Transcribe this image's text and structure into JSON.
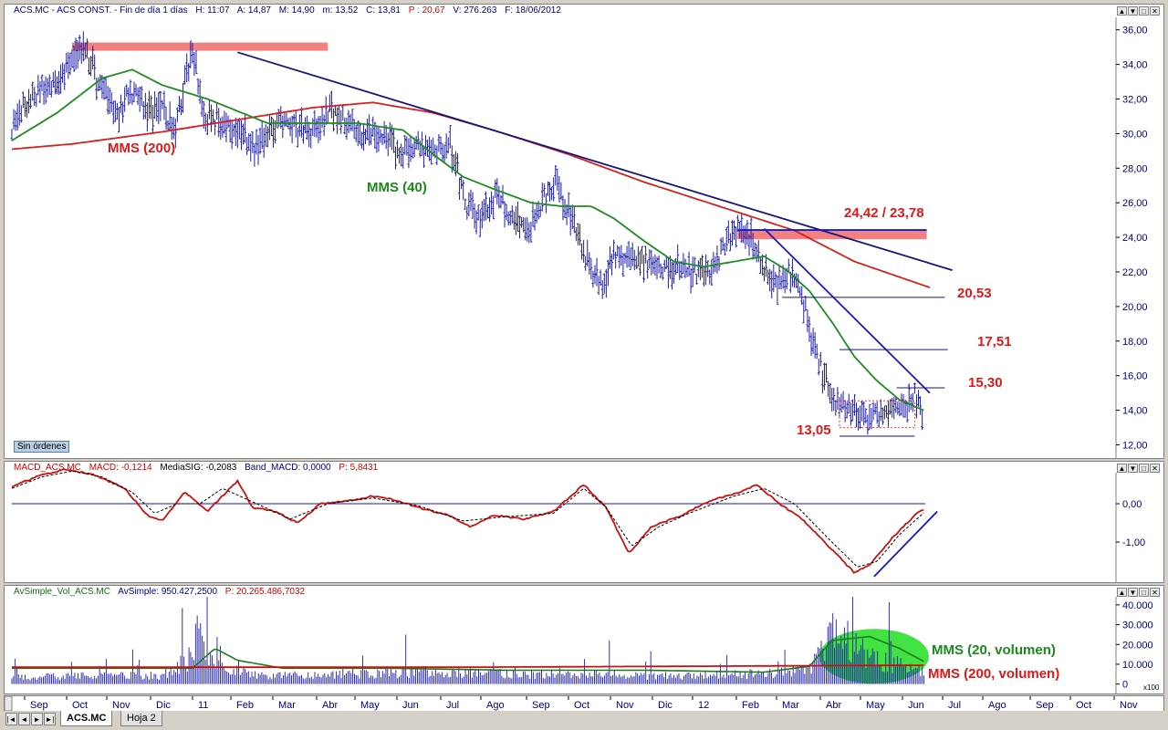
{
  "price_pane": {
    "title_parts": [
      "ACS.MC - ACS CONST. - Fin de día 1 días",
      "H: 11:07",
      "A: 14,87",
      "M: 14,90",
      "m: 13,52",
      "C: 13,81",
      "P : 20,67",
      "V: 276.263",
      "F: 18/06/2012"
    ],
    "no_orders_label": "Sin órdenes"
  },
  "macd_pane": {
    "title_parts": [
      "MACD_ACS.MC",
      "MACD: -0,1214",
      "MediaSIG: -0,2083",
      "Band_MACD: 0,0000",
      "P: 5,8431"
    ]
  },
  "vol_pane": {
    "title_parts": [
      "AvSimple_Vol_ACS.MC",
      "AvSimple: 950.427,2500",
      "P: 20.265.486,7032"
    ]
  },
  "window_buttons": [
    "▲",
    "▼",
    "□",
    "✕"
  ],
  "sheet_tabs": [
    "ACS.MC",
    "Hoja 2"
  ],
  "nav_buttons": [
    "|◄",
    "◄",
    "►",
    "►|"
  ],
  "colors": {
    "price_bars": "#1c1caa",
    "mms40": "#1e8c1e",
    "mms200": "#d42020",
    "trend": "#14147a",
    "resistance_band": "#f48080",
    "annotation_red": "#e01818",
    "annotation_green": "#1a8a1a",
    "volume_bubble": "#22dd22"
  },
  "chart_data": [
    {
      "type": "line",
      "title": "ACS.MC - ACS CONST.",
      "subtype": "ohlc-bars",
      "y_ticks": [
        "12,00",
        "14,00",
        "16,00",
        "18,00",
        "20,00",
        "22,00",
        "24,00",
        "26,00",
        "28,00",
        "30,00",
        "32,00",
        "34,00",
        "36,00"
      ],
      "ylim": [
        11.5,
        36.3
      ],
      "x_ticks": [
        "Sep",
        "Oct",
        "Nov",
        "Dic",
        "11",
        "Feb",
        "Mar",
        "Abr",
        "May",
        "Jun",
        "Jul",
        "Ago",
        "Sep",
        "Oct",
        "Nov",
        "Dic",
        "12",
        "Feb",
        "Mar",
        "Abr",
        "May",
        "Jun",
        "Jul",
        "Ago",
        "Sep",
        "Oct",
        "Nov"
      ],
      "price_path": [
        [
          0,
          30.3
        ],
        [
          10,
          31.8
        ],
        [
          25,
          32.8
        ],
        [
          35,
          33.6
        ],
        [
          48,
          34.8
        ],
        [
          55,
          33.5
        ],
        [
          60,
          32.5
        ],
        [
          70,
          31
        ],
        [
          78,
          32.5
        ],
        [
          90,
          31.3
        ],
        [
          100,
          31.6
        ],
        [
          108,
          30
        ],
        [
          115,
          33
        ],
        [
          120,
          34.7
        ],
        [
          128,
          31
        ],
        [
          138,
          30.8
        ],
        [
          150,
          30.2
        ],
        [
          162,
          29.2
        ],
        [
          172,
          30
        ],
        [
          180,
          30.8
        ],
        [
          190,
          30.5
        ],
        [
          200,
          30
        ],
        [
          212,
          31.6
        ],
        [
          222,
          30.6
        ],
        [
          235,
          29.8
        ],
        [
          250,
          29.7
        ],
        [
          258,
          28.5
        ],
        [
          270,
          29.5
        ],
        [
          282,
          28.8
        ],
        [
          292,
          29.2
        ],
        [
          302,
          25.8
        ],
        [
          312,
          25
        ],
        [
          322,
          26.4
        ],
        [
          332,
          25.2
        ],
        [
          342,
          24.4
        ],
        [
          352,
          26
        ],
        [
          362,
          27.2
        ],
        [
          375,
          24.4
        ],
        [
          385,
          22.2
        ],
        [
          392,
          21
        ],
        [
          400,
          22.8
        ],
        [
          410,
          23
        ],
        [
          420,
          22.6
        ],
        [
          432,
          22.1
        ],
        [
          445,
          22.4
        ],
        [
          455,
          21.9
        ],
        [
          465,
          22.2
        ],
        [
          475,
          23.8
        ],
        [
          482,
          24.4
        ],
        [
          492,
          23.8
        ],
        [
          500,
          22
        ],
        [
          510,
          21.2
        ],
        [
          518,
          22.2
        ],
        [
          525,
          20.6
        ],
        [
          535,
          17
        ],
        [
          545,
          14.7
        ],
        [
          555,
          13.9
        ],
        [
          565,
          13.5
        ],
        [
          575,
          13.8
        ],
        [
          585,
          14.1
        ],
        [
          595,
          14.2
        ],
        [
          600,
          14.87
        ],
        [
          606,
          13.81
        ]
      ],
      "series": [
        {
          "name": "MMS (200)",
          "values": [
            [
              0,
              29.1
            ],
            [
              40,
              29.4
            ],
            [
              100,
              30.1
            ],
            [
              150,
              30.8
            ],
            [
              200,
              31.5
            ],
            [
              240,
              31.8
            ],
            [
              280,
              31.2
            ],
            [
              320,
              30.2
            ],
            [
              370,
              28.8
            ],
            [
              420,
              27.2
            ],
            [
              470,
              25.8
            ],
            [
              520,
              24.4
            ],
            [
              560,
              22.6
            ],
            [
              610,
              21.1
            ]
          ]
        },
        {
          "name": "MMS (40)",
          "values": [
            [
              0,
              29.6
            ],
            [
              30,
              31.2
            ],
            [
              60,
              33.2
            ],
            [
              80,
              33.7
            ],
            [
              100,
              32.8
            ],
            [
              130,
              32
            ],
            [
              150,
              31.3
            ],
            [
              170,
              30.6
            ],
            [
              200,
              30.6
            ],
            [
              230,
              30.6
            ],
            [
              260,
              30.2
            ],
            [
              280,
              28.8
            ],
            [
              300,
              27.5
            ],
            [
              320,
              26.8
            ],
            [
              345,
              26
            ],
            [
              365,
              25.8
            ],
            [
              385,
              25.8
            ],
            [
              400,
              25.1
            ],
            [
              420,
              23.8
            ],
            [
              440,
              22.6
            ],
            [
              460,
              22.3
            ],
            [
              480,
              22.6
            ],
            [
              500,
              22.9
            ],
            [
              515,
              22.1
            ],
            [
              530,
              20.9
            ],
            [
              545,
              19.1
            ],
            [
              560,
              17.1
            ],
            [
              575,
              15.7
            ],
            [
              590,
              14.6
            ],
            [
              606,
              14
            ]
          ]
        }
      ],
      "annotations": {
        "mms200_label": "MMS (200)",
        "mms40_label": "MMS (40)",
        "resistance_label": "24,42 / 23,78",
        "level_20": "20,53",
        "level_17": "17,51",
        "level_15": "15,30",
        "support_label": "13,05"
      },
      "trendlines": [
        {
          "from": [
            150,
            34.7
          ],
          "to": [
            625,
            22.1
          ]
        },
        {
          "from": [
            500,
            24.5
          ],
          "to": [
            610,
            15
          ]
        }
      ],
      "levels": [
        {
          "value": 35.0,
          "x": [
            40,
            210
          ],
          "kind": "band"
        },
        {
          "value": 24.1,
          "x": [
            482,
            608
          ],
          "kind": "band"
        },
        {
          "value": 24.42,
          "x": [
            482,
            608
          ],
          "kind": "line"
        },
        {
          "value": 20.53,
          "x": [
            512,
            620
          ],
          "kind": "line"
        },
        {
          "value": 17.51,
          "x": [
            550,
            622
          ],
          "kind": "line"
        },
        {
          "value": 15.3,
          "x": [
            588,
            620
          ],
          "kind": "line"
        },
        {
          "value": 12.5,
          "x": [
            550,
            600
          ],
          "kind": "line"
        }
      ]
    },
    {
      "type": "line",
      "title": "MACD_ACS.MC",
      "y_ticks": [
        "0,00",
        "-1,00"
      ],
      "ylim": [
        -1.95,
        1.0
      ],
      "series": [
        {
          "name": "MACD",
          "values": [
            [
              0,
              0.45
            ],
            [
              20,
              0.75
            ],
            [
              35,
              0.9
            ],
            [
              55,
              0.75
            ],
            [
              75,
              0.4
            ],
            [
              90,
              -0.3
            ],
            [
              100,
              -0.45
            ],
            [
              115,
              0.3
            ],
            [
              130,
              -0.2
            ],
            [
              150,
              0.6
            ],
            [
              160,
              -0.1
            ],
            [
              175,
              -0.2
            ],
            [
              190,
              -0.5
            ],
            [
              205,
              0
            ],
            [
              220,
              0.05
            ],
            [
              240,
              0.2
            ],
            [
              255,
              0.1
            ],
            [
              270,
              -0.1
            ],
            [
              290,
              -0.3
            ],
            [
              305,
              -0.6
            ],
            [
              320,
              -0.3
            ],
            [
              340,
              -0.4
            ],
            [
              360,
              -0.2
            ],
            [
              380,
              0.5
            ],
            [
              395,
              -0.1
            ],
            [
              410,
              -1.3
            ],
            [
              425,
              -0.6
            ],
            [
              445,
              -0.3
            ],
            [
              465,
              0.1
            ],
            [
              480,
              0.25
            ],
            [
              495,
              0.5
            ],
            [
              510,
              0
            ],
            [
              525,
              -0.4
            ],
            [
              545,
              -1.2
            ],
            [
              560,
              -1.8
            ],
            [
              570,
              -1.6
            ],
            [
              585,
              -0.9
            ],
            [
              600,
              -0.3
            ],
            [
              607,
              -0.12
            ]
          ]
        },
        {
          "name": "MediaSIG",
          "values": [
            [
              0,
              0.4
            ],
            [
              20,
              0.7
            ],
            [
              40,
              0.85
            ],
            [
              60,
              0.7
            ],
            [
              80,
              0.3
            ],
            [
              95,
              -0.25
            ],
            [
              110,
              0
            ],
            [
              125,
              0
            ],
            [
              140,
              0.4
            ],
            [
              160,
              0.05
            ],
            [
              185,
              -0.4
            ],
            [
              210,
              0
            ],
            [
              240,
              0.15
            ],
            [
              270,
              -0.05
            ],
            [
              300,
              -0.45
            ],
            [
              325,
              -0.35
            ],
            [
              360,
              -0.25
            ],
            [
              380,
              0.4
            ],
            [
              395,
              -0.1
            ],
            [
              412,
              -1.1
            ],
            [
              430,
              -0.6
            ],
            [
              450,
              -0.25
            ],
            [
              480,
              0.2
            ],
            [
              500,
              0.4
            ],
            [
              520,
              0
            ],
            [
              545,
              -1
            ],
            [
              562,
              -1.65
            ],
            [
              575,
              -1.5
            ],
            [
              590,
              -0.8
            ],
            [
              607,
              -0.2
            ]
          ]
        }
      ]
    },
    {
      "type": "bar",
      "title": "AvSimple_Vol_ACS.MC",
      "y_ticks": [
        "0",
        "10.000",
        "20.000",
        "30.000",
        "40.000"
      ],
      "y_unit": "x100",
      "ylim": [
        -2,
        45
      ],
      "volume_profile": [
        [
          0,
          5
        ],
        [
          50,
          6
        ],
        [
          100,
          6
        ],
        [
          120,
          20
        ],
        [
          125,
          45
        ],
        [
          135,
          12
        ],
        [
          160,
          7
        ],
        [
          200,
          6
        ],
        [
          240,
          7
        ],
        [
          270,
          9
        ],
        [
          300,
          8
        ],
        [
          340,
          7
        ],
        [
          380,
          8
        ],
        [
          420,
          6
        ],
        [
          470,
          6
        ],
        [
          530,
          10
        ],
        [
          545,
          35
        ],
        [
          555,
          28
        ],
        [
          575,
          18
        ],
        [
          595,
          12
        ],
        [
          607,
          10
        ]
      ],
      "series": [
        {
          "name": "MMS (20, volumen)",
          "values": [
            [
              0,
              8
            ],
            [
              80,
              8
            ],
            [
              120,
              8
            ],
            [
              135,
              18
            ],
            [
              150,
              12
            ],
            [
              180,
              8
            ],
            [
              250,
              8
            ],
            [
              330,
              7
            ],
            [
              420,
              7
            ],
            [
              500,
              6
            ],
            [
              530,
              9
            ],
            [
              545,
              22
            ],
            [
              570,
              24
            ],
            [
              590,
              18
            ],
            [
              607,
              11
            ]
          ]
        },
        {
          "name": "MMS (200, volumen)",
          "values": [
            [
              0,
              8.5
            ],
            [
              300,
              8.5
            ],
            [
              607,
              9.5
            ]
          ]
        }
      ],
      "annotations": {
        "mms20_label": "MMS (20, volumen)",
        "mms200_label": "MMS (200, volumen)"
      }
    }
  ]
}
